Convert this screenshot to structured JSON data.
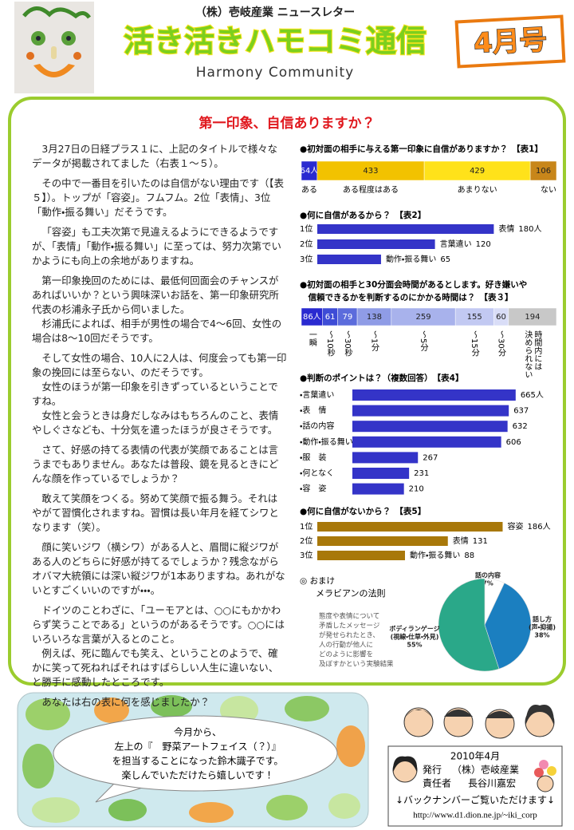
{
  "header": {
    "kicker": "（株）壱岐産業 ニュースレター",
    "title": "活き活きハモコミ通信",
    "subtitle": "Harmony Community",
    "issue": "4月号"
  },
  "article": {
    "heading": "第一印象、自信ありますか？",
    "blocks": [
      [
        "3月27日の日経プラス１に、上記のタイトルで様々なデータが掲載されてました（右表１～５）。"
      ],
      [
        "その中で一番目を引いたのは自信がない理由です（【表５】）。トップが「容姿」。フムフム。2位「表情」、3位「動作・振る舞い」だそうです。"
      ],
      [
        "「容姿」も工夫次第で見違えるようにできるようですが、「表情」「動作・振る舞い」に至っては、努力次第でいかようにも向上の余地がありますね。"
      ],
      [
        "第一印象挽回のためには、最低何回面会のチャンスがあればいいか？という興味深いお話を、第一印象研究所代表の杉浦永子氏から伺いました。",
        "杉浦氏によれば、相手が男性の場合で4～6回、女性の場合は8～10回だそうです。"
      ],
      [
        "そして女性の場合、10人に2人は、何度会っても第一印象の挽回には至らない、のだそうです。",
        "女性のほうが第一印象を引きずっているということですね。",
        "女性と会うときは身だしなみはもちろんのこと、表情やしぐさなども、十分気を遣ったほうが良さそうです。"
      ],
      [
        "さて、好感の持てる表情の代表が笑顔であることは言うまでもありません。あなたは普段、鏡を見るときにどんな顔を作っているでしょうか？"
      ],
      [
        "敢えて笑顔をつくる。努めて笑顔で振る舞う。それはやがて習慣化されますね。習慣は長い年月を経てシワとなります（笑）。"
      ],
      [
        "顔に笑いジワ（横シワ）がある人と、眉間に縦ジワがある人のどちらに好感が持てるでしょうか？残念ながらオバマ大統領には深い縦ジワが1本ありますね。あれがないとすごくいいのですが・・・。"
      ],
      [
        "ドイツのことわざに、「ユーモアとは、○○にもかかわらず笑うことである」というのがあるそうです。○○にはいろいろな言葉が入るとのこと。",
        "例えば、死に臨んでも笑え、ということのようで、確かに笑って死ねればそれはすばらしい人生に違いない、と勝手に感動したところです。"
      ],
      [
        "あなたは右の表に何を感じましたか？"
      ]
    ]
  },
  "charts": [
    {
      "type": "stacked-bar",
      "title": [
        "●初対面の相手に与える第一印象に自信がありますか？　【表1】"
      ],
      "categories": [
        [
          "ある"
        ],
        [
          "ある程度はある"
        ],
        [
          "あまりない"
        ],
        [
          "ない"
        ]
      ],
      "values": [
        64,
        433,
        429,
        106
      ],
      "value_labels": [
        "64人",
        "433",
        "429",
        "106"
      ],
      "colors": [
        "#2a2ad0",
        "#f2c200",
        "#ffe21a",
        "#c8861a"
      ]
    },
    {
      "type": "ranked-bar",
      "title": [
        "●何に自信があるから？　【表2】"
      ],
      "ranks": [
        "1位",
        "2位",
        "3位"
      ],
      "categories": [
        "表情",
        "言葉遣い",
        "動作・振る舞い"
      ],
      "values": [
        180,
        120,
        65
      ],
      "value_labels": [
        "180人",
        "120",
        "65"
      ],
      "color": "#3434c8"
    },
    {
      "type": "stacked-bar",
      "title": [
        "●初対面の相手と30分面会時間があるとします。好き嫌いや",
        "　信頼できるかを判断するのにかかる時間は？　【表３】"
      ],
      "categories": [
        [
          "一瞬"
        ],
        [
          "〜10秒"
        ],
        [
          "〜30秒"
        ],
        [
          "〜1分"
        ],
        [
          "〜5分"
        ],
        [
          "〜15分"
        ],
        [
          "〜30分"
        ],
        [
          "時間内には",
          "決められない"
        ]
      ],
      "values": [
        86,
        61,
        79,
        138,
        259,
        155,
        60,
        194
      ],
      "value_labels": [
        "86人",
        "61",
        "79",
        "138",
        "259",
        "155",
        "60",
        "194"
      ],
      "colors": [
        "#2a2ad0",
        "#3e4cd6",
        "#5c6cdc",
        "#8f9ce6",
        "#a8b2ec",
        "#c2c9f2",
        "#d9ddf7",
        "#c8c8c8"
      ]
    },
    {
      "type": "ranked-bar",
      "title": [
        "●判断のポイントは？（複数回答）　【表4】"
      ],
      "ranks": [
        "・言葉遣い",
        "・表　情",
        "・話の内容",
        "・動作・振る舞い",
        "・服　装",
        "・何となく",
        "・容　姿"
      ],
      "values": [
        665,
        637,
        632,
        606,
        267,
        231,
        210
      ],
      "value_labels": [
        "665人",
        "637",
        "632",
        "606",
        "267",
        "231",
        "210"
      ],
      "color": "#3434c8"
    },
    {
      "type": "ranked-bar",
      "title": [
        "●何に自信がないから？　【表5】"
      ],
      "ranks": [
        "1位",
        "2位",
        "3位"
      ],
      "categories": [
        "容姿",
        "表情",
        "動作・振る舞い"
      ],
      "values": [
        186,
        131,
        88
      ],
      "value_labels": [
        "186人",
        "131",
        "88"
      ],
      "color": "#a8780a"
    },
    {
      "type": "pie",
      "title": [
        "◎ おまけ",
        "メラビアンの法則"
      ],
      "note": [
        "態度や表情について",
        "矛盾したメッセージ",
        "が発せられたとき、",
        "人の行動が他人に",
        "どのように影響を",
        "及ぼすかという実験結果"
      ],
      "categories": [
        [
          "話の内容"
        ],
        [
          "話し方",
          "(声・抑揚)"
        ],
        [
          "ボディランゲージ",
          "(視線・仕草・外見)"
        ]
      ],
      "values": [
        7,
        38,
        55
      ],
      "value_labels": [
        "7%",
        "38%",
        "55%"
      ],
      "colors": [
        "#ffffff",
        "#1b7fc0",
        "#2aa889"
      ]
    }
  ],
  "footer": {
    "message": [
      "今月から、",
      "左上の『　野菜アートフェイス（？）』",
      "を担当することになった鈴木識子です。",
      "楽しんでいただけたら嬉しいです！"
    ],
    "date": "2010年4月",
    "publisher": {
      "label": "発行",
      "value": "（株）壱岐産業"
    },
    "manager": {
      "label": "責任者",
      "value": "長谷川嘉宏"
    },
    "backnumber": "↓バックナンバーご覧いただけます↓",
    "url": "http://www.d1.dion.ne.jp/~iki_corp"
  }
}
